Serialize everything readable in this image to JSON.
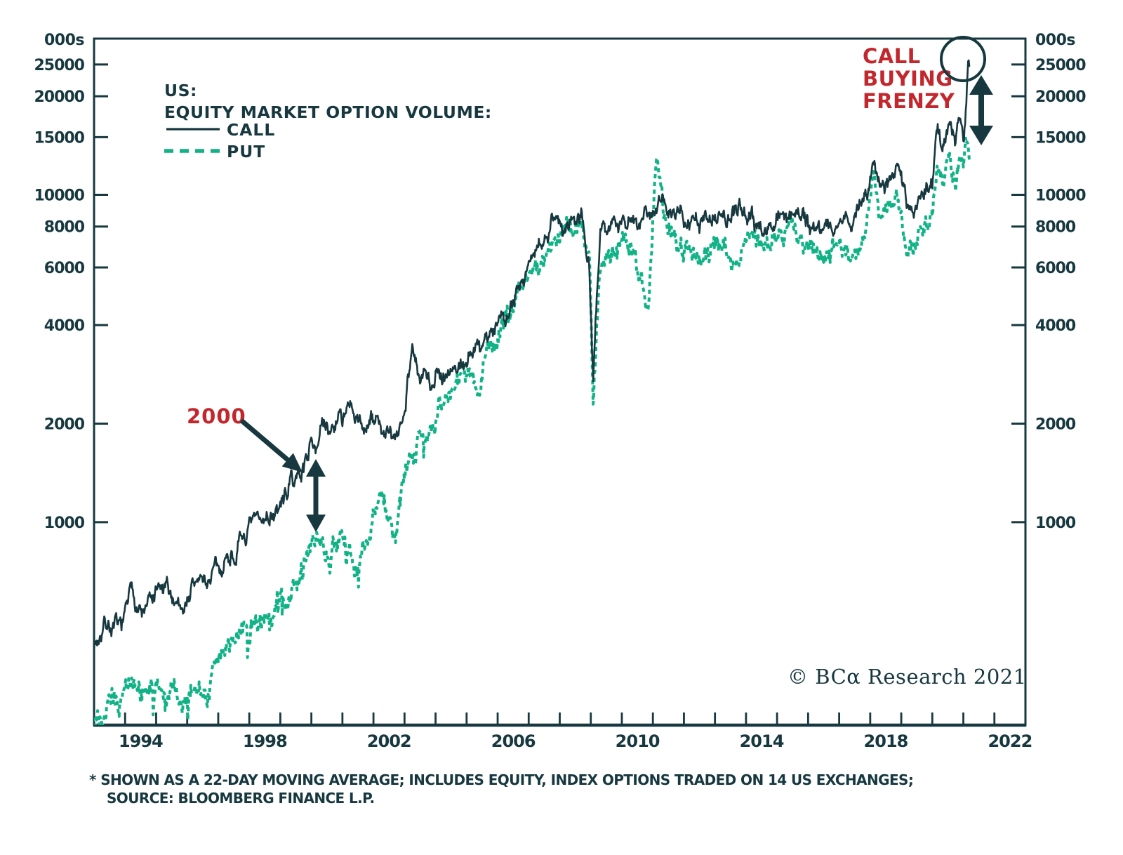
{
  "legend": {
    "region_label": "US:",
    "title": "EQUITY MARKET OPTION VOLUME:",
    "call_label": "CALL",
    "put_label": "PUT"
  },
  "annotations": {
    "dotcom_label": "2000",
    "frenzy_lines": [
      "CALL",
      "BUYING",
      "FRENZY"
    ]
  },
  "copyright_text": "© BCα Research 2021",
  "footnotes": {
    "line1": "* SHOWN AS A 22-DAY MOVING AVERAGE; INCLUDES EQUITY, INDEX OPTIONS TRADED ON 14 US EXCHANGES;",
    "line2": "SOURCE: BLOOMBERG FINANCE L.P."
  },
  "colors": {
    "line_dark": "#17383f",
    "line_green": "#12b287",
    "annotation_red": "#c2272d",
    "background": "#ffffff"
  },
  "chart_data": {
    "type": "line",
    "title": "US: EQUITY MARKET OPTION VOLUME",
    "legend_position": "top-left",
    "grid": false,
    "y_scale": "log",
    "y_unit_label": "000s",
    "y_domain": [
      240,
      30000
    ],
    "y_ticks": [
      25000,
      20000,
      15000,
      10000,
      8000,
      6000,
      4000,
      2000,
      1000
    ],
    "x_domain": [
      1993,
      2023
    ],
    "x_minor_ticks": [
      1994,
      1995,
      1996,
      1997,
      1998,
      1999,
      2000,
      2001,
      2002,
      2003,
      2004,
      2005,
      2006,
      2007,
      2008,
      2009,
      2010,
      2011,
      2012,
      2013,
      2014,
      2015,
      2016,
      2017,
      2018,
      2019,
      2020,
      2021,
      2022
    ],
    "x_tick_labels": [
      1994,
      1998,
      2002,
      2006,
      2010,
      2014,
      2018,
      2022
    ],
    "x_label_offset_years": 0.5,
    "noise": {
      "samples_per_year": 52,
      "fast_amp": 0.015,
      "slow_amp": 0.0135,
      "fast_rho": 0.55,
      "slow_rho": 0.92,
      "clamp": 0.095,
      "put_scale": 1.15,
      "seed_call": 7,
      "seed_put": 13
    },
    "series": [
      {
        "name": "CALL",
        "style": "solid",
        "color": "#17383f",
        "points": [
          [
            1993.0,
            430
          ],
          [
            1993.4,
            480
          ],
          [
            1993.8,
            450
          ],
          [
            1994.2,
            560
          ],
          [
            1994.6,
            520
          ],
          [
            1995.0,
            560
          ],
          [
            1995.4,
            600
          ],
          [
            1995.8,
            560
          ],
          [
            1996.2,
            640
          ],
          [
            1996.6,
            660
          ],
          [
            1997.0,
            700
          ],
          [
            1997.4,
            780
          ],
          [
            1997.8,
            860
          ],
          [
            1998.2,
            950
          ],
          [
            1998.6,
            1000
          ],
          [
            1999.0,
            1120
          ],
          [
            1999.4,
            1300
          ],
          [
            1999.7,
            1450
          ],
          [
            2000.0,
            1750
          ],
          [
            2000.3,
            1950
          ],
          [
            2000.6,
            1800
          ],
          [
            2000.9,
            2050
          ],
          [
            2001.2,
            2100
          ],
          [
            2001.5,
            1900
          ],
          [
            2001.8,
            2000
          ],
          [
            2002.1,
            2050
          ],
          [
            2002.4,
            1850
          ],
          [
            2002.7,
            1750
          ],
          [
            2003.0,
            2150
          ],
          [
            2003.25,
            3550
          ],
          [
            2003.5,
            2700
          ],
          [
            2003.8,
            2750
          ],
          [
            2004.2,
            2950
          ],
          [
            2004.6,
            3050
          ],
          [
            2005.0,
            3200
          ],
          [
            2005.4,
            3400
          ],
          [
            2005.8,
            3800
          ],
          [
            2006.2,
            4500
          ],
          [
            2006.6,
            5100
          ],
          [
            2007.0,
            6100
          ],
          [
            2007.4,
            6900
          ],
          [
            2007.8,
            8600
          ],
          [
            2008.1,
            8100
          ],
          [
            2008.4,
            8700
          ],
          [
            2008.7,
            9400
          ],
          [
            2008.95,
            6500
          ],
          [
            2009.08,
            2800
          ],
          [
            2009.3,
            7300
          ],
          [
            2009.7,
            8400
          ],
          [
            2010.1,
            8900
          ],
          [
            2010.5,
            8300
          ],
          [
            2010.9,
            9300
          ],
          [
            2011.2,
            9800
          ],
          [
            2011.5,
            8800
          ],
          [
            2012.0,
            8200
          ],
          [
            2012.5,
            7900
          ],
          [
            2013.0,
            8500
          ],
          [
            2013.5,
            8100
          ],
          [
            2014.0,
            8800
          ],
          [
            2014.5,
            8200
          ],
          [
            2015.0,
            8800
          ],
          [
            2015.5,
            9300
          ],
          [
            2016.0,
            8100
          ],
          [
            2016.5,
            7900
          ],
          [
            2017.0,
            8300
          ],
          [
            2017.5,
            8800
          ],
          [
            2017.9,
            9500
          ],
          [
            2018.1,
            13800
          ],
          [
            2018.35,
            10200
          ],
          [
            2018.6,
            10800
          ],
          [
            2018.9,
            12200
          ],
          [
            2019.2,
            9300
          ],
          [
            2019.5,
            9100
          ],
          [
            2019.8,
            10200
          ],
          [
            2020.0,
            10800
          ],
          [
            2020.15,
            15500
          ],
          [
            2020.35,
            14200
          ],
          [
            2020.55,
            16800
          ],
          [
            2020.75,
            15800
          ],
          [
            2020.9,
            18200
          ],
          [
            2021.0,
            17200
          ],
          [
            2021.08,
            19800
          ],
          [
            2021.15,
            26500
          ],
          [
            2021.2,
            24500
          ]
        ]
      },
      {
        "name": "PUT",
        "style": "dashed",
        "color": "#12b287",
        "points": [
          [
            1993.0,
            255
          ],
          [
            1993.4,
            300
          ],
          [
            1993.8,
            270
          ],
          [
            1994.2,
            330
          ],
          [
            1994.6,
            295
          ],
          [
            1995.0,
            330
          ],
          [
            1995.4,
            310
          ],
          [
            1995.8,
            280
          ],
          [
            1996.2,
            330
          ],
          [
            1996.6,
            300
          ],
          [
            1997.0,
            380
          ],
          [
            1997.4,
            430
          ],
          [
            1997.8,
            470
          ],
          [
            1998.2,
            500
          ],
          [
            1998.6,
            540
          ],
          [
            1999.0,
            580
          ],
          [
            1999.4,
            650
          ],
          [
            1999.7,
            720
          ],
          [
            2000.0,
            850
          ],
          [
            2000.3,
            950
          ],
          [
            2000.6,
            820
          ],
          [
            2000.9,
            880
          ],
          [
            2001.2,
            820
          ],
          [
            2001.5,
            700
          ],
          [
            2001.8,
            900
          ],
          [
            2002.1,
            1150
          ],
          [
            2002.4,
            1100
          ],
          [
            2002.7,
            1050
          ],
          [
            2003.0,
            1450
          ],
          [
            2003.25,
            1900
          ],
          [
            2003.5,
            1800
          ],
          [
            2003.8,
            2000
          ],
          [
            2004.2,
            2250
          ],
          [
            2004.6,
            2450
          ],
          [
            2005.0,
            2650
          ],
          [
            2005.4,
            2850
          ],
          [
            2005.8,
            3300
          ],
          [
            2006.2,
            3900
          ],
          [
            2006.6,
            4400
          ],
          [
            2007.0,
            5500
          ],
          [
            2007.4,
            6200
          ],
          [
            2007.8,
            7800
          ],
          [
            2008.1,
            7200
          ],
          [
            2008.4,
            7800
          ],
          [
            2008.7,
            8600
          ],
          [
            2008.95,
            6000
          ],
          [
            2009.08,
            2450
          ],
          [
            2009.3,
            6300
          ],
          [
            2009.7,
            6900
          ],
          [
            2010.1,
            7300
          ],
          [
            2010.5,
            6400
          ],
          [
            2010.85,
            4400
          ],
          [
            2011.1,
            12700
          ],
          [
            2011.35,
            9000
          ],
          [
            2011.6,
            7600
          ],
          [
            2012.0,
            6900
          ],
          [
            2012.5,
            6400
          ],
          [
            2013.0,
            7100
          ],
          [
            2013.5,
            6600
          ],
          [
            2014.0,
            7400
          ],
          [
            2014.5,
            6700
          ],
          [
            2015.0,
            7400
          ],
          [
            2015.5,
            8000
          ],
          [
            2016.0,
            6700
          ],
          [
            2016.5,
            6400
          ],
          [
            2017.0,
            6700
          ],
          [
            2017.5,
            7100
          ],
          [
            2017.9,
            7800
          ],
          [
            2018.1,
            10900
          ],
          [
            2018.35,
            8400
          ],
          [
            2018.6,
            8800
          ],
          [
            2018.9,
            9600
          ],
          [
            2019.2,
            7400
          ],
          [
            2019.5,
            7200
          ],
          [
            2019.8,
            8100
          ],
          [
            2020.0,
            8600
          ],
          [
            2020.15,
            12200
          ],
          [
            2020.35,
            10200
          ],
          [
            2020.55,
            11800
          ],
          [
            2020.75,
            11000
          ],
          [
            2020.9,
            12600
          ],
          [
            2021.0,
            12000
          ],
          [
            2021.08,
            13600
          ],
          [
            2021.15,
            14600
          ],
          [
            2021.2,
            12800
          ]
        ]
      }
    ]
  }
}
